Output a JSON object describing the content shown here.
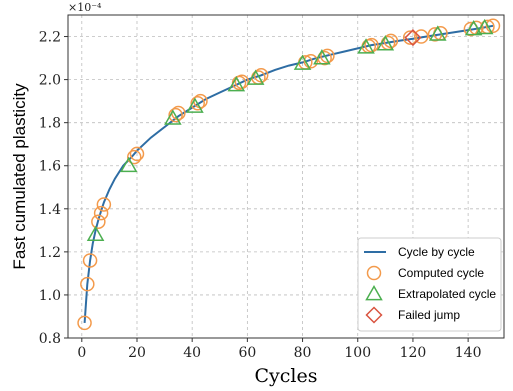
{
  "chart_data": {
    "type": "line",
    "title": "",
    "xlabel": "Cycles",
    "ylabel": "Fast cumulated plasticity",
    "y_offset_label": "×10⁻⁴",
    "xlim": [
      -5,
      153
    ],
    "ylim": [
      0.8,
      2.3
    ],
    "x_ticks": [
      0,
      20,
      40,
      60,
      80,
      100,
      120,
      140
    ],
    "y_ticks": [
      0.8,
      1.0,
      1.2,
      1.4,
      1.6,
      1.8,
      2.0,
      2.2
    ],
    "y_tick_labels": [
      "0.8",
      "1.0",
      "1.2",
      "1.4",
      "1.6",
      "1.8",
      "2.0",
      "2.2"
    ],
    "grid": true,
    "legend_position": "bottom-right",
    "colors": {
      "cycle_by_cycle": "#2e6da4",
      "computed": "#f39a4b",
      "extrapolated": "#4caf50",
      "failed": "#d9533f"
    },
    "series": [
      {
        "name": "Cycle by cycle",
        "kind": "line",
        "x": [
          1,
          2,
          3,
          4,
          5,
          6,
          7,
          8,
          10,
          12,
          15,
          18,
          20,
          25,
          30,
          35,
          40,
          45,
          50,
          55,
          60,
          65,
          70,
          75,
          80,
          85,
          90,
          95,
          100,
          105,
          110,
          115,
          120,
          125,
          130,
          135,
          140,
          145,
          149
        ],
        "y": [
          0.87,
          1.05,
          1.16,
          1.24,
          1.3,
          1.35,
          1.39,
          1.43,
          1.49,
          1.54,
          1.6,
          1.64,
          1.67,
          1.73,
          1.78,
          1.83,
          1.87,
          1.91,
          1.94,
          1.97,
          2.0,
          2.02,
          2.045,
          2.065,
          2.08,
          2.1,
          2.115,
          2.13,
          2.145,
          2.16,
          2.17,
          2.18,
          2.19,
          2.2,
          2.21,
          2.22,
          2.23,
          2.24,
          2.25
        ]
      },
      {
        "name": "Computed cycle",
        "kind": "circle",
        "x": [
          1,
          2,
          3,
          6,
          7,
          8,
          19,
          20,
          34,
          35,
          42,
          43,
          57,
          58,
          64,
          65,
          81,
          83,
          88,
          89,
          104,
          105,
          111,
          112,
          119,
          123,
          128,
          130,
          141,
          143,
          147,
          149
        ],
        "y": [
          0.87,
          1.05,
          1.16,
          1.34,
          1.38,
          1.42,
          1.64,
          1.655,
          1.835,
          1.845,
          1.89,
          1.9,
          1.985,
          1.99,
          2.01,
          2.02,
          2.08,
          2.085,
          2.1,
          2.11,
          2.155,
          2.16,
          2.17,
          2.18,
          2.195,
          2.2,
          2.21,
          2.215,
          2.235,
          2.24,
          2.245,
          2.25
        ]
      },
      {
        "name": "Extrapolated cycle",
        "kind": "triangle",
        "x": [
          5,
          17,
          33,
          41,
          56,
          63,
          80,
          87,
          103,
          110,
          129,
          142,
          146
        ],
        "y": [
          1.28,
          1.6,
          1.82,
          1.875,
          1.975,
          2.005,
          2.075,
          2.1,
          2.15,
          2.165,
          2.21,
          2.235,
          2.24
        ]
      },
      {
        "name": "Failed jump",
        "kind": "diamond",
        "x": [
          120
        ],
        "y": [
          2.195
        ]
      }
    ]
  }
}
